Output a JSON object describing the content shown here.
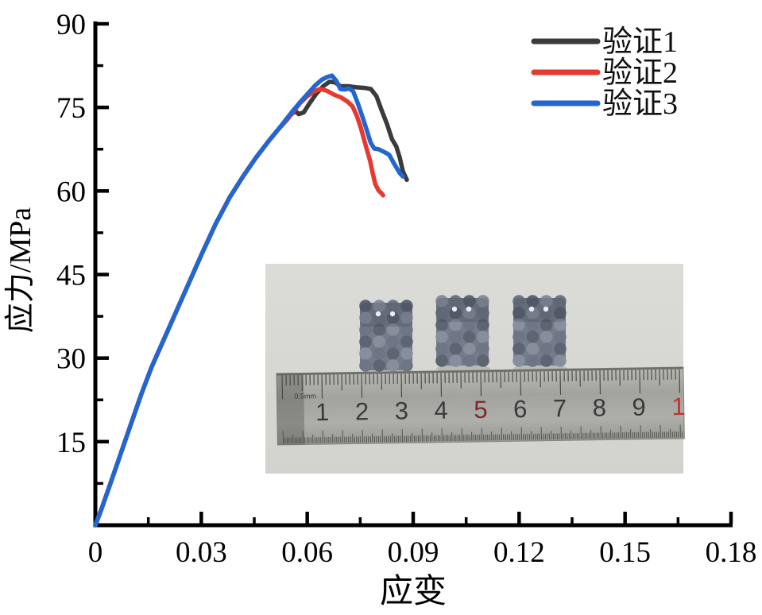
{
  "chart_data": {
    "type": "line",
    "title": "",
    "xlabel": "应变",
    "ylabel": "应力/MPa",
    "xlim": [
      0,
      0.18
    ],
    "ylim": [
      0,
      90
    ],
    "grid": false,
    "legend_position": "top-right",
    "axis_color": "#000000",
    "x_tick_values": [
      0,
      0.03,
      0.06,
      0.09,
      0.12,
      0.15,
      0.18
    ],
    "x_tick_labels": [
      "0",
      "0.03",
      "0.06",
      "0.09",
      "0.12",
      "0.15",
      "0.18"
    ],
    "x_minor_tick_values": [
      0.015,
      0.045,
      0.075,
      0.105,
      0.135,
      0.165
    ],
    "y_tick_values": [
      15,
      30,
      45,
      60,
      75,
      90
    ],
    "y_tick_labels": [
      "15",
      "30",
      "45",
      "60",
      "75",
      "90"
    ],
    "y_minor_tick_values": [
      7.5,
      22.5,
      37.5,
      52.5,
      67.5,
      82.5
    ],
    "series": [
      {
        "name": "验证1",
        "color": "#3a3b3d",
        "points": [
          [
            0,
            0
          ],
          [
            0.0015,
            2.5
          ],
          [
            0.004,
            7
          ],
          [
            0.007,
            12.5
          ],
          [
            0.01,
            18
          ],
          [
            0.013,
            23.5
          ],
          [
            0.016,
            28.5
          ],
          [
            0.0195,
            33.5
          ],
          [
            0.023,
            38.5
          ],
          [
            0.0265,
            43.5
          ],
          [
            0.03,
            48.5
          ],
          [
            0.034,
            54
          ],
          [
            0.038,
            58.8
          ],
          [
            0.042,
            62.8
          ],
          [
            0.0455,
            66
          ],
          [
            0.049,
            68.9
          ],
          [
            0.052,
            71.2
          ],
          [
            0.0542,
            72.8
          ],
          [
            0.0557,
            73.9
          ],
          [
            0.0568,
            74.3
          ],
          [
            0.0576,
            73.8
          ],
          [
            0.059,
            74.1
          ],
          [
            0.0605,
            75.6
          ],
          [
            0.0625,
            77.4
          ],
          [
            0.0645,
            78.8
          ],
          [
            0.0663,
            79.6
          ],
          [
            0.0678,
            79.5
          ],
          [
            0.0695,
            78.8
          ],
          [
            0.0715,
            78.8
          ],
          [
            0.074,
            78.6
          ],
          [
            0.0762,
            78.5
          ],
          [
            0.078,
            78.3
          ],
          [
            0.0796,
            77.0
          ],
          [
            0.081,
            74.6
          ],
          [
            0.0826,
            72.0
          ],
          [
            0.084,
            69.3
          ],
          [
            0.0852,
            68.0
          ],
          [
            0.0862,
            66.0
          ],
          [
            0.0871,
            63.5
          ],
          [
            0.0882,
            62.0
          ]
        ]
      },
      {
        "name": "验证2",
        "color": "#e6392f",
        "points": [
          [
            0,
            0
          ],
          [
            0.0015,
            2.5
          ],
          [
            0.004,
            7
          ],
          [
            0.007,
            12.5
          ],
          [
            0.01,
            18
          ],
          [
            0.013,
            23.5
          ],
          [
            0.016,
            28.5
          ],
          [
            0.0195,
            33.5
          ],
          [
            0.023,
            38.5
          ],
          [
            0.0265,
            43.5
          ],
          [
            0.03,
            48.5
          ],
          [
            0.034,
            54
          ],
          [
            0.038,
            58.8
          ],
          [
            0.042,
            62.8
          ],
          [
            0.0455,
            66
          ],
          [
            0.049,
            68.9
          ],
          [
            0.052,
            71.2
          ],
          [
            0.0542,
            72.7
          ],
          [
            0.056,
            74.2
          ],
          [
            0.058,
            75.8
          ],
          [
            0.06,
            77.0
          ],
          [
            0.062,
            77.9
          ],
          [
            0.0637,
            78.3
          ],
          [
            0.0655,
            78.0
          ],
          [
            0.0675,
            77.3
          ],
          [
            0.0695,
            76.8
          ],
          [
            0.0713,
            76.1
          ],
          [
            0.0728,
            75.2
          ],
          [
            0.0741,
            73.4
          ],
          [
            0.0752,
            71.3
          ],
          [
            0.0761,
            69.2
          ],
          [
            0.077,
            67.2
          ],
          [
            0.0778,
            65.4
          ],
          [
            0.0785,
            63.3
          ],
          [
            0.0793,
            61.2
          ],
          [
            0.0802,
            60.1
          ],
          [
            0.081,
            59.6
          ],
          [
            0.0815,
            59.2
          ]
        ]
      },
      {
        "name": "验证3",
        "color": "#2366d1",
        "points": [
          [
            0,
            0
          ],
          [
            0.0015,
            2.5
          ],
          [
            0.004,
            7
          ],
          [
            0.007,
            12.5
          ],
          [
            0.01,
            18
          ],
          [
            0.013,
            23.5
          ],
          [
            0.016,
            28.5
          ],
          [
            0.0195,
            33.5
          ],
          [
            0.023,
            38.5
          ],
          [
            0.0265,
            43.5
          ],
          [
            0.03,
            48.5
          ],
          [
            0.034,
            54
          ],
          [
            0.038,
            58.8
          ],
          [
            0.042,
            62.8
          ],
          [
            0.0455,
            66
          ],
          [
            0.049,
            68.9
          ],
          [
            0.052,
            71.2
          ],
          [
            0.0542,
            73.0
          ],
          [
            0.0562,
            74.6
          ],
          [
            0.0582,
            76.1
          ],
          [
            0.0602,
            77.5
          ],
          [
            0.0622,
            78.9
          ],
          [
            0.0642,
            80.0
          ],
          [
            0.0658,
            80.5
          ],
          [
            0.067,
            80.7
          ],
          [
            0.0682,
            79.8
          ],
          [
            0.0694,
            78.3
          ],
          [
            0.0706,
            78.2
          ],
          [
            0.0718,
            78.4
          ],
          [
            0.073,
            77.9
          ],
          [
            0.0744,
            75.6
          ],
          [
            0.0757,
            73.2
          ],
          [
            0.0769,
            70.8
          ],
          [
            0.078,
            68.6
          ],
          [
            0.079,
            67.6
          ],
          [
            0.0802,
            67.5
          ],
          [
            0.0818,
            67.0
          ],
          [
            0.0832,
            66.5
          ],
          [
            0.0845,
            65.0
          ],
          [
            0.0862,
            63.2
          ],
          [
            0.0871,
            62.6
          ]
        ]
      }
    ]
  },
  "inset_photo": {
    "specimen_count": 3,
    "specimen_color": "#747c8b",
    "background_color": "#d7d8d4",
    "ruler": {
      "numbers": [
        "1",
        "2",
        "3",
        "4",
        "5",
        "6",
        "7",
        "8",
        "9",
        "1"
      ],
      "default_number_color": "#3a3a3a",
      "number_colors": {
        "4": "#7c2b28",
        "9": "#c23329"
      },
      "left_label": "0.5mm"
    }
  }
}
